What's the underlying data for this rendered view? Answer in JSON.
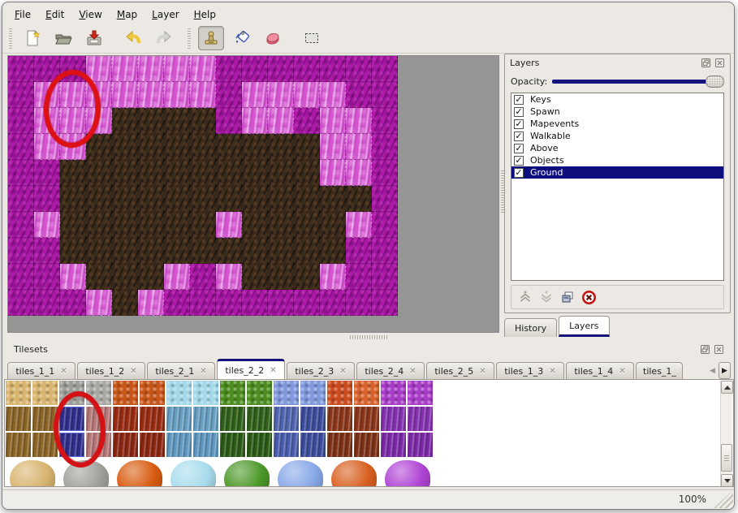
{
  "menu": {
    "items": [
      "File",
      "Edit",
      "View",
      "Map",
      "Layer",
      "Help"
    ]
  },
  "toolbar": {
    "tools": [
      "new-file",
      "open-file",
      "save-file",
      "undo",
      "redo",
      "stamp-tool",
      "fill-tool",
      "eraser-tool",
      "rect-select-tool"
    ],
    "active_tool": "stamp-tool"
  },
  "map_view": {
    "tile_size": 32,
    "grid": [
      "MMMPPPPPMMMMMMM",
      "MPPPPPPPMPPPPMM",
      "MPPPBBBBMPPMPPM",
      "MPPBBBBBBBBBPPM",
      "MMBBBBBBBBBBPPM",
      "MMBBBBBBBBBBBBM",
      "MPBBBBBBPBBBBPM",
      "MMBBBBBBBBBBBMM",
      "MMPBBBPMPBBBPMM",
      "MMMPBPMMMMMMMMM"
    ],
    "tile_colors": {
      "M": "#ad18a8",
      "P": "#d355cf",
      "B": "#382a1c"
    },
    "annotation_color": "#dd1016"
  },
  "layers_panel": {
    "title": "Layers",
    "opacity_label": "Opacity:",
    "opacity_value": "100",
    "selection_color": "#0d0d7d",
    "layers": [
      {
        "label": "Keys",
        "checked": true,
        "selected": false
      },
      {
        "label": "Spawn",
        "checked": true,
        "selected": false
      },
      {
        "label": "Mapevents",
        "checked": true,
        "selected": false
      },
      {
        "label": "Walkable",
        "checked": true,
        "selected": false
      },
      {
        "label": "Above",
        "checked": true,
        "selected": false
      },
      {
        "label": "Objects",
        "checked": true,
        "selected": false
      },
      {
        "label": "Ground",
        "checked": true,
        "selected": true
      }
    ],
    "dock_tabs": [
      {
        "label": "History",
        "active": false
      },
      {
        "label": "Layers",
        "active": true
      }
    ]
  },
  "tilesets_panel": {
    "title": "Tilesets",
    "tabs": [
      {
        "label": "tiles_1_1",
        "active": false
      },
      {
        "label": "tiles_1_2",
        "active": false
      },
      {
        "label": "tiles_2_1",
        "active": false
      },
      {
        "label": "tiles_2_2",
        "active": true
      },
      {
        "label": "tiles_2_3",
        "active": false
      },
      {
        "label": "tiles_2_4",
        "active": false
      },
      {
        "label": "tiles_2_5",
        "active": false
      },
      {
        "label": "tiles_1_3",
        "active": false
      },
      {
        "label": "tiles_1_4",
        "active": false
      },
      {
        "label": "tiles_1_",
        "active": false,
        "truncated": true
      }
    ],
    "grid_rows": [
      {
        "name": "row-top",
        "speck": true,
        "colors": [
          "#d8b46e",
          "#d8b46e",
          "#9c9c98",
          "#a8a8a4",
          "#c85518",
          "#c85518",
          "#a2d8e8",
          "#a2d8e8",
          "#4c8c20",
          "#4c8c20",
          "#8098dc",
          "#8098dc",
          "#cc4c20",
          "#d8622c",
          "#a83cc8",
          "#a83cc8"
        ]
      },
      {
        "name": "row-mid",
        "speck": false,
        "colors": [
          "#8c6426",
          "#8c6426",
          "#2e2c8c",
          "#b87878",
          "#992a10",
          "#992a10",
          "#68a0c4",
          "#68a0c4",
          "#2e6018",
          "#2e6018",
          "#5064b0",
          "#3c4c9c",
          "#8c3418",
          "#8c3418",
          "#8430b0",
          "#8430b0"
        ]
      },
      {
        "name": "row-bottom",
        "speck": false,
        "colors": [
          "#8c6426",
          "#8c6426",
          "#2e2c8c",
          "#b87878",
          "#8c2510",
          "#8c2510",
          "#5f98c0",
          "#5f98c0",
          "#2a5a14",
          "#2a5a14",
          "#4a5cae",
          "#3c4c9c",
          "#7e3014",
          "#7e3014",
          "#7c28a8",
          "#7c28a8"
        ]
      }
    ],
    "selected_tile": {
      "col": 2,
      "rows": [
        1,
        2
      ]
    },
    "blob_colors": [
      "#d8b46e",
      "#a0a09c",
      "#d85c10",
      "#a8dcec",
      "#4c9828",
      "#88a8e8",
      "#d86020",
      "#b044d4"
    ],
    "annotation_color": "#d41216"
  },
  "status_bar": {
    "zoom_level": "100%"
  }
}
